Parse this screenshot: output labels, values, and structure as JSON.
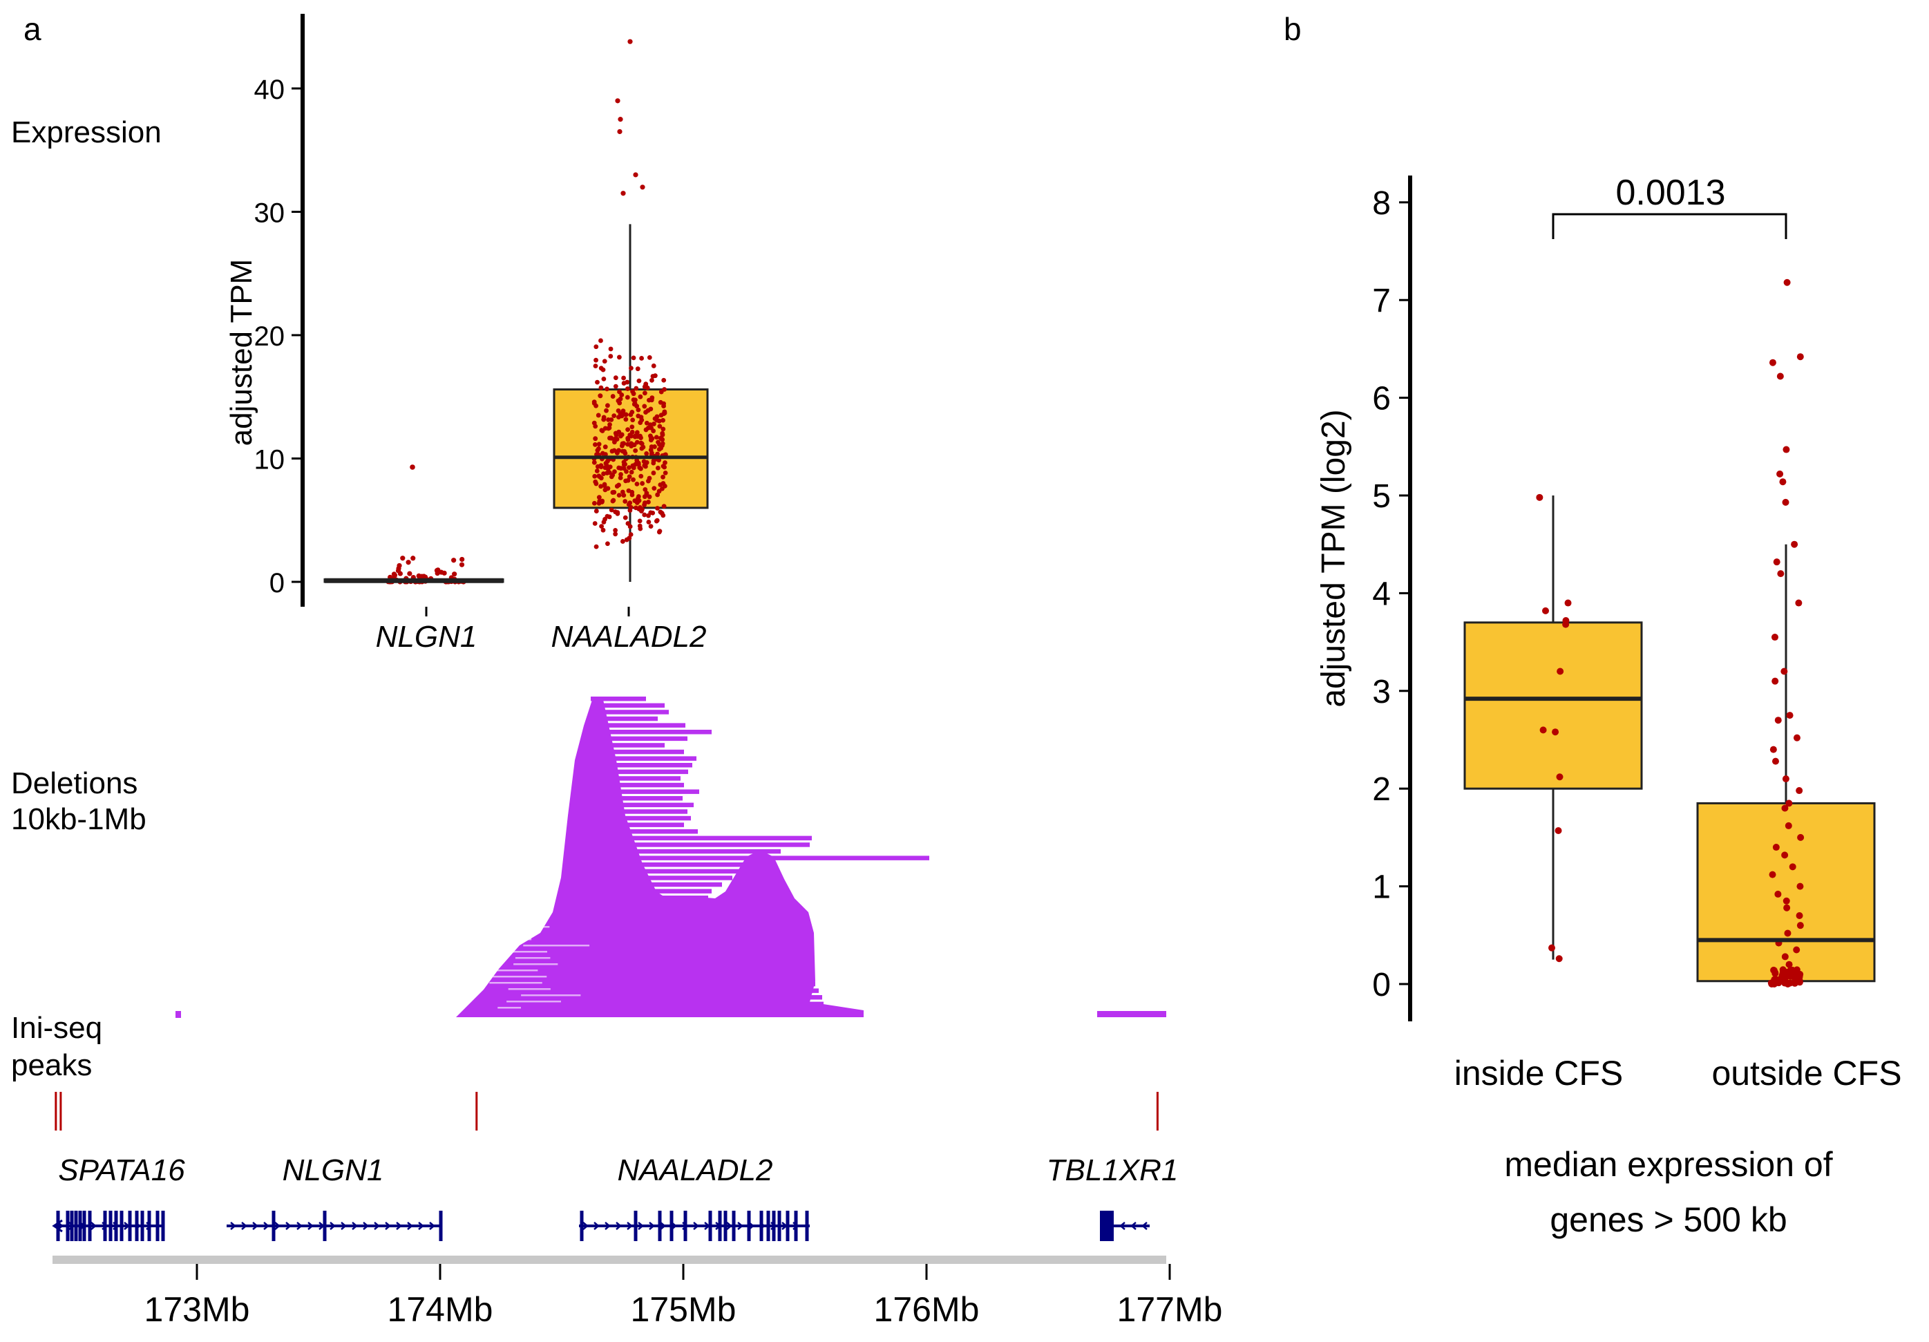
{
  "panel_a": {
    "label": "a",
    "track_labels": {
      "expression": "Expression",
      "deletions_line1": "Deletions",
      "deletions_line2": "10kb-1Mb",
      "iniseq_line1": "Ini-seq",
      "iniseq_line2": "peaks"
    },
    "genes": [
      "SPATA16",
      "NLGN1",
      "NAALADL2",
      "TBL1XR1"
    ],
    "genome_ticks": [
      "173Mb",
      "174Mb",
      "175Mb",
      "176Mb",
      "177Mb"
    ],
    "genome_tick_values": [
      173,
      174,
      175,
      176,
      177
    ],
    "genome_range_mb": [
      172.4,
      177.0
    ],
    "iniseq_peaks_mb": [
      172.42,
      172.44,
      174.15,
      176.95
    ]
  },
  "panel_b": {
    "label": "b",
    "p_value": "0.0013",
    "xlabel_line1": "median expression of",
    "xlabel_line2": "genes > 500 kb"
  },
  "colors": {
    "box_fill": "#f9c332",
    "points": "#b40000",
    "deletions": "#b832f0",
    "gene_models": "#000080",
    "peaks": "#b40000",
    "axis": "#000000",
    "genome_bar": "#c8c8c8"
  },
  "chart_data": [
    {
      "type": "box",
      "title": "Expression",
      "ylabel": "adjusted TPM",
      "categories": [
        "NLGN1",
        "NAALADL2"
      ],
      "ylim": [
        0,
        45
      ],
      "yticks": [
        0,
        10,
        20,
        30,
        40
      ],
      "boxes": [
        {
          "name": "NLGN1",
          "q1": 0,
          "median": 0.1,
          "q3": 0.2,
          "whisker_low": 0,
          "whisker_high": 0.2,
          "max_point": 9.3
        },
        {
          "name": "NAALADL2",
          "q1": 6,
          "median": 10.1,
          "q3": 15.6,
          "whisker_low": 0,
          "whisker_high": 29,
          "max_point": 43.8
        }
      ]
    },
    {
      "type": "box",
      "ylabel": "adjusted TPM (log2)",
      "categories": [
        "inside CFS",
        "outside CFS"
      ],
      "ylim": [
        -0.4,
        8.2
      ],
      "yticks": [
        0,
        1,
        2,
        3,
        4,
        5,
        6,
        7,
        8
      ],
      "boxes": [
        {
          "name": "inside CFS",
          "q1": 2.0,
          "median": 2.92,
          "q3": 3.7,
          "whisker_low": 0.25,
          "whisker_high": 5.0,
          "points": [
            4.98,
            3.9,
            3.82,
            3.72,
            3.68,
            3.2,
            2.6,
            2.58,
            2.12,
            1.57,
            0.37,
            0.26
          ]
        },
        {
          "name": "outside CFS",
          "q1": 0.03,
          "median": 0.45,
          "q3": 1.85,
          "whisker_low": 0,
          "whisker_high": 4.5,
          "points": [
            7.18,
            6.42,
            6.36,
            6.22,
            5.47,
            5.22,
            5.14,
            4.93,
            4.5,
            4.32,
            4.2,
            3.9,
            3.55,
            3.2,
            3.1,
            2.75,
            2.7,
            2.52,
            2.4,
            2.28,
            2.1,
            1.98,
            1.85,
            1.8,
            1.62,
            1.5,
            1.4,
            1.32,
            1.2,
            1.12,
            1.0,
            0.92,
            0.85,
            0.78,
            0.7,
            0.6,
            0.52,
            0.42,
            0.35,
            0.28,
            0.2,
            0.12,
            0.08,
            0.04,
            0.02,
            0.01,
            0.0,
            0.0
          ]
        }
      ]
    }
  ]
}
